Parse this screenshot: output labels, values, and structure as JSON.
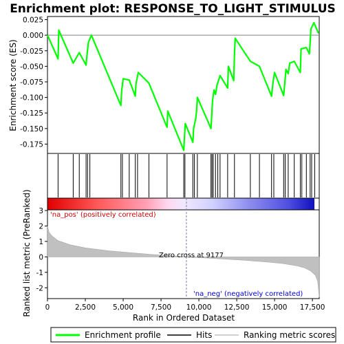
{
  "chart_data": {
    "type": "line",
    "title": "Enrichment plot: RESPONSE_TO_LIGHT_STIMULUS",
    "xlabel": "Rank in Ordered Dataset",
    "es_panel": {
      "ylabel": "Enrichment score (ES)",
      "ylim": [
        -0.19,
        0.03
      ],
      "yticks": [
        "0.025",
        "0.000",
        "-0.025",
        "-0.050",
        "-0.075",
        "-0.100",
        "-0.125",
        "-0.150",
        "-0.175"
      ],
      "ytick_values": [
        0.025,
        0.0,
        -0.025,
        -0.05,
        -0.075,
        -0.1,
        -0.125,
        -0.15,
        -0.175
      ],
      "series": {
        "name": "Enrichment profile",
        "color": "#00ff00",
        "x": [
          0,
          700,
          750,
          1700,
          2100,
          2550,
          2600,
          2700,
          2900,
          4850,
          4900,
          5000,
          5400,
          5800,
          5850,
          6000,
          6700,
          7900,
          7950,
          9000,
          9050,
          9100,
          9600,
          9650,
          9800,
          9850,
          9900,
          10800,
          10850,
          10900,
          11000,
          11100,
          11200,
          11400,
          11900,
          11950,
          12300,
          12350,
          12400,
          13400,
          14000,
          14800,
          14900,
          15000,
          15600,
          15700,
          15750,
          15900,
          16000,
          16300,
          16700,
          16750,
          17100,
          17300,
          17350,
          17400,
          17600,
          17900
        ],
        "y": [
          0.0,
          -0.038,
          0.008,
          -0.045,
          -0.028,
          -0.048,
          -0.035,
          -0.012,
          0.0,
          -0.113,
          -0.09,
          -0.07,
          -0.072,
          -0.098,
          -0.078,
          -0.06,
          -0.077,
          -0.148,
          -0.122,
          -0.185,
          -0.162,
          -0.142,
          -0.172,
          -0.15,
          -0.133,
          -0.12,
          -0.1,
          -0.15,
          -0.128,
          -0.105,
          -0.088,
          -0.095,
          -0.08,
          -0.065,
          -0.085,
          -0.05,
          -0.073,
          -0.03,
          -0.005,
          -0.042,
          -0.05,
          -0.098,
          -0.075,
          -0.06,
          -0.097,
          -0.07,
          -0.055,
          -0.062,
          -0.045,
          -0.042,
          -0.06,
          -0.022,
          -0.02,
          -0.03,
          -0.012,
          0.01,
          0.02,
          0.003
        ]
      },
      "zero_line_color": "#808080"
    },
    "hits_panel": {
      "name": "Hits",
      "hit_positions": [
        700,
        1700,
        2100,
        2550,
        2650,
        2800,
        4850,
        4950,
        5400,
        5800,
        5950,
        6700,
        7900,
        9000,
        9080,
        9600,
        9700,
        9900,
        10800,
        10870,
        10950,
        11100,
        11250,
        11400,
        11900,
        12350,
        13400,
        14000,
        14800,
        14950,
        15600,
        15700,
        15900,
        16300,
        16700,
        16800,
        17100,
        17350,
        17450,
        17650
      ]
    },
    "ranked_panel": {
      "name": "Ranking metric scores",
      "ylabel": "Ranked list metric (PreRanked)",
      "ylim": [
        -2.7,
        3.8
      ],
      "yticks": [
        "3",
        "2",
        "1",
        "0",
        "-1",
        "-2"
      ],
      "ytick_values": [
        3,
        2,
        1,
        0,
        -1,
        -2
      ],
      "fill_color": "#c0c0c0",
      "curve_x": [
        0,
        100,
        300,
        700,
        1500,
        2500,
        4000,
        5500,
        7000,
        8500,
        9177,
        10000,
        11500,
        13000,
        14500,
        15500,
        16500,
        17000,
        17400,
        17700,
        17850,
        17950
      ],
      "curve_y": [
        2.0,
        1.6,
        1.35,
        1.05,
        0.78,
        0.58,
        0.4,
        0.27,
        0.15,
        0.05,
        0.0,
        -0.05,
        -0.13,
        -0.22,
        -0.33,
        -0.43,
        -0.58,
        -0.72,
        -0.92,
        -1.2,
        -1.6,
        -2.6
      ],
      "zero_cross_label": "Zero cross at 9177",
      "zero_cross": 9177,
      "pos_label": "'na_pos' (positively correlated)",
      "neg_label": "'na_neg' (negatively correlated)",
      "pos_color": "#cc0000",
      "neg_color": "#0000cc"
    },
    "xlim": [
      0,
      17950
    ],
    "xticks": [
      "0",
      "2,500",
      "5,000",
      "7,500",
      "10,000",
      "12,500",
      "15,000",
      "17,500"
    ],
    "xtick_values": [
      0,
      2500,
      5000,
      7500,
      10000,
      12500,
      15000,
      17500
    ],
    "legend": {
      "placement": "bottom",
      "entries": [
        {
          "label": "Enrichment profile",
          "color": "#00ff00"
        },
        {
          "label": "Hits",
          "color": "#000000"
        },
        {
          "label": "Ranking metric scores",
          "color": "#c0c0c0"
        }
      ]
    }
  }
}
